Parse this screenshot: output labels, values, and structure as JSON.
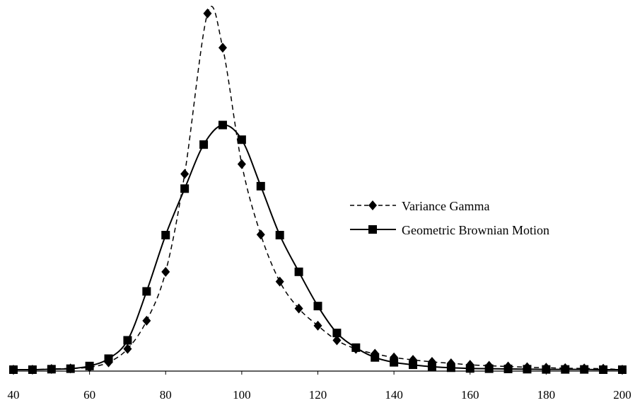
{
  "chart_data": {
    "type": "line",
    "title": "",
    "xlabel": "",
    "ylabel": "",
    "xlim": [
      40,
      200
    ],
    "ylim": [
      0,
      1
    ],
    "x_ticks": [
      40,
      60,
      80,
      100,
      120,
      140,
      160,
      180,
      200
    ],
    "grid": false,
    "legend_position": "right",
    "series": [
      {
        "name": "Variance Gamma",
        "style": "dashed",
        "marker": "diamond",
        "color": "#000000",
        "points": [
          [
            40,
            0.0
          ],
          [
            45,
            0.0
          ],
          [
            50,
            0.003
          ],
          [
            55,
            0.005
          ],
          [
            60,
            0.01
          ],
          [
            65,
            0.03
          ],
          [
            70,
            0.085
          ],
          [
            75,
            0.2
          ],
          [
            80,
            0.4
          ],
          [
            85,
            0.8
          ],
          [
            91,
            1.456
          ],
          [
            95,
            1.316
          ],
          [
            100,
            0.84
          ],
          [
            105,
            0.552
          ],
          [
            110,
            0.36
          ],
          [
            115,
            0.25
          ],
          [
            120,
            0.18
          ],
          [
            125,
            0.12
          ],
          [
            130,
            0.085
          ],
          [
            135,
            0.065
          ],
          [
            140,
            0.05
          ],
          [
            145,
            0.04
          ],
          [
            150,
            0.032
          ],
          [
            155,
            0.026
          ],
          [
            160,
            0.02
          ],
          [
            165,
            0.016
          ],
          [
            170,
            0.013
          ],
          [
            175,
            0.01
          ],
          [
            180,
            0.008
          ],
          [
            185,
            0.006
          ],
          [
            190,
            0.005
          ],
          [
            195,
            0.004
          ],
          [
            200,
            0.0
          ]
        ]
      },
      {
        "name": "Geometric Brownian Motion",
        "style": "solid",
        "marker": "square",
        "color": "#000000",
        "points": [
          [
            40,
            0.0
          ],
          [
            45,
            0.0
          ],
          [
            50,
            0.002
          ],
          [
            55,
            0.004
          ],
          [
            60,
            0.015
          ],
          [
            65,
            0.045
          ],
          [
            70,
            0.12
          ],
          [
            75,
            0.32
          ],
          [
            80,
            0.55
          ],
          [
            85,
            0.74
          ],
          [
            90,
            0.92
          ],
          [
            95,
            1.0
          ],
          [
            100,
            0.94
          ],
          [
            105,
            0.75
          ],
          [
            110,
            0.55
          ],
          [
            115,
            0.4
          ],
          [
            120,
            0.26
          ],
          [
            125,
            0.15
          ],
          [
            130,
            0.09
          ],
          [
            135,
            0.05
          ],
          [
            140,
            0.03
          ],
          [
            145,
            0.02
          ],
          [
            150,
            0.012
          ],
          [
            155,
            0.008
          ],
          [
            160,
            0.005
          ],
          [
            165,
            0.004
          ],
          [
            170,
            0.003
          ],
          [
            175,
            0.002
          ],
          [
            180,
            0.001
          ],
          [
            185,
            0.001
          ],
          [
            190,
            0.001
          ],
          [
            195,
            0.0
          ],
          [
            200,
            0.0
          ]
        ]
      }
    ]
  }
}
